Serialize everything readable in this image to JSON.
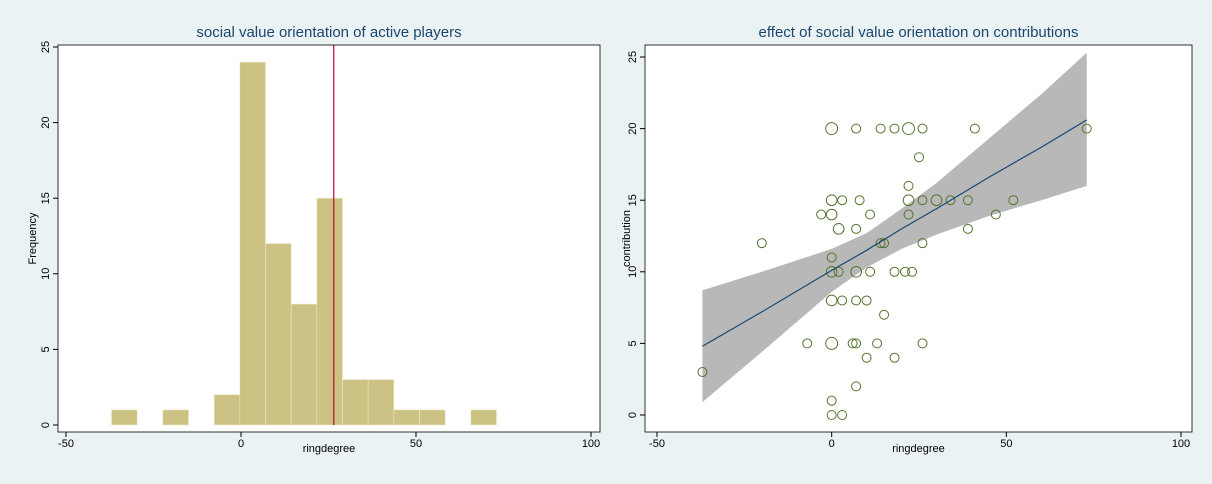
{
  "chart_data": [
    {
      "type": "histogram",
      "title": "social value orientation of active players",
      "x_label": "ringdegree",
      "y_label": "Frequency",
      "bins": [
        -37,
        -29.67,
        -22.33,
        -15,
        -7.67,
        -0.33,
        7,
        14.33,
        21.67,
        29,
        36.33,
        43.67,
        51,
        58.33,
        65.67,
        73
      ],
      "counts": [
        1,
        0,
        1,
        0,
        2,
        24,
        12,
        8,
        15,
        3,
        3,
        1,
        1,
        0,
        1
      ],
      "color": "#cbc283",
      "xline": 26.5,
      "xline_color": "#c10534",
      "xlim": [
        -50,
        100
      ],
      "xticks": [
        -50,
        0,
        50,
        100
      ],
      "ylim": [
        0,
        25
      ],
      "yticks": [
        0,
        5,
        10,
        15,
        20,
        25
      ]
    },
    {
      "type": "scatter",
      "title": "effect of social value orientation on contributions",
      "x_label": "ringdegree",
      "y_label": "contribution",
      "color": "#55752f",
      "x": [
        0,
        7,
        14,
        18,
        22,
        26,
        41,
        73,
        25,
        22,
        0,
        3,
        8,
        22,
        26,
        30,
        34,
        39,
        52,
        -3,
        0,
        11,
        22,
        47,
        2,
        7,
        39,
        -20,
        14,
        15,
        26,
        0,
        0,
        2,
        7,
        11,
        18,
        21,
        23,
        0,
        3,
        7,
        10,
        15,
        -7,
        0,
        6,
        7,
        13,
        26,
        10,
        18,
        -37,
        7,
        0,
        0,
        3
      ],
      "y": [
        20,
        20,
        20,
        20,
        20,
        20,
        20,
        20,
        18,
        16,
        15,
        15,
        15,
        15,
        15,
        15,
        15,
        15,
        15,
        14,
        14,
        14,
        14,
        14,
        13,
        13,
        13,
        12,
        12,
        12,
        12,
        11,
        10,
        10,
        10,
        10,
        10,
        10,
        10,
        8,
        8,
        8,
        8,
        7,
        5,
        5,
        5,
        5,
        5,
        5,
        4,
        4,
        3,
        2,
        1,
        0,
        0
      ],
      "sizes": [
        3,
        1,
        1,
        1,
        3,
        1,
        1,
        1,
        1,
        1,
        2,
        1,
        1,
        2,
        1,
        2,
        1,
        1,
        1,
        1,
        2,
        1,
        1,
        1,
        2,
        1,
        1,
        1,
        1,
        1,
        1,
        1,
        2,
        1,
        2,
        1,
        1,
        1,
        1,
        2,
        1,
        1,
        1,
        1,
        1,
        3,
        1,
        1,
        1,
        1,
        1,
        1,
        1,
        1,
        1,
        1,
        1
      ],
      "fit": {
        "color": "#1a476f",
        "x": [
          -37,
          -20,
          0,
          10,
          20,
          30,
          45,
          60,
          73
        ],
        "values": [
          4.8,
          7.2,
          10.1,
          11.5,
          13.0,
          14.4,
          16.6,
          18.7,
          20.6
        ],
        "lower": [
          0.9,
          4.4,
          8.6,
          10.3,
          11.6,
          12.6,
          13.9,
          15.0,
          16.0
        ],
        "upper": [
          8.7,
          10.0,
          11.6,
          12.7,
          14.4,
          16.2,
          19.3,
          22.4,
          25.3
        ],
        "band_color": "#b8b8b8"
      },
      "xlim": [
        -50,
        100
      ],
      "xticks": [
        -50,
        0,
        50,
        100
      ],
      "ylim": [
        0,
        25
      ],
      "yticks": [
        0,
        5,
        10,
        15,
        20,
        25
      ]
    }
  ]
}
